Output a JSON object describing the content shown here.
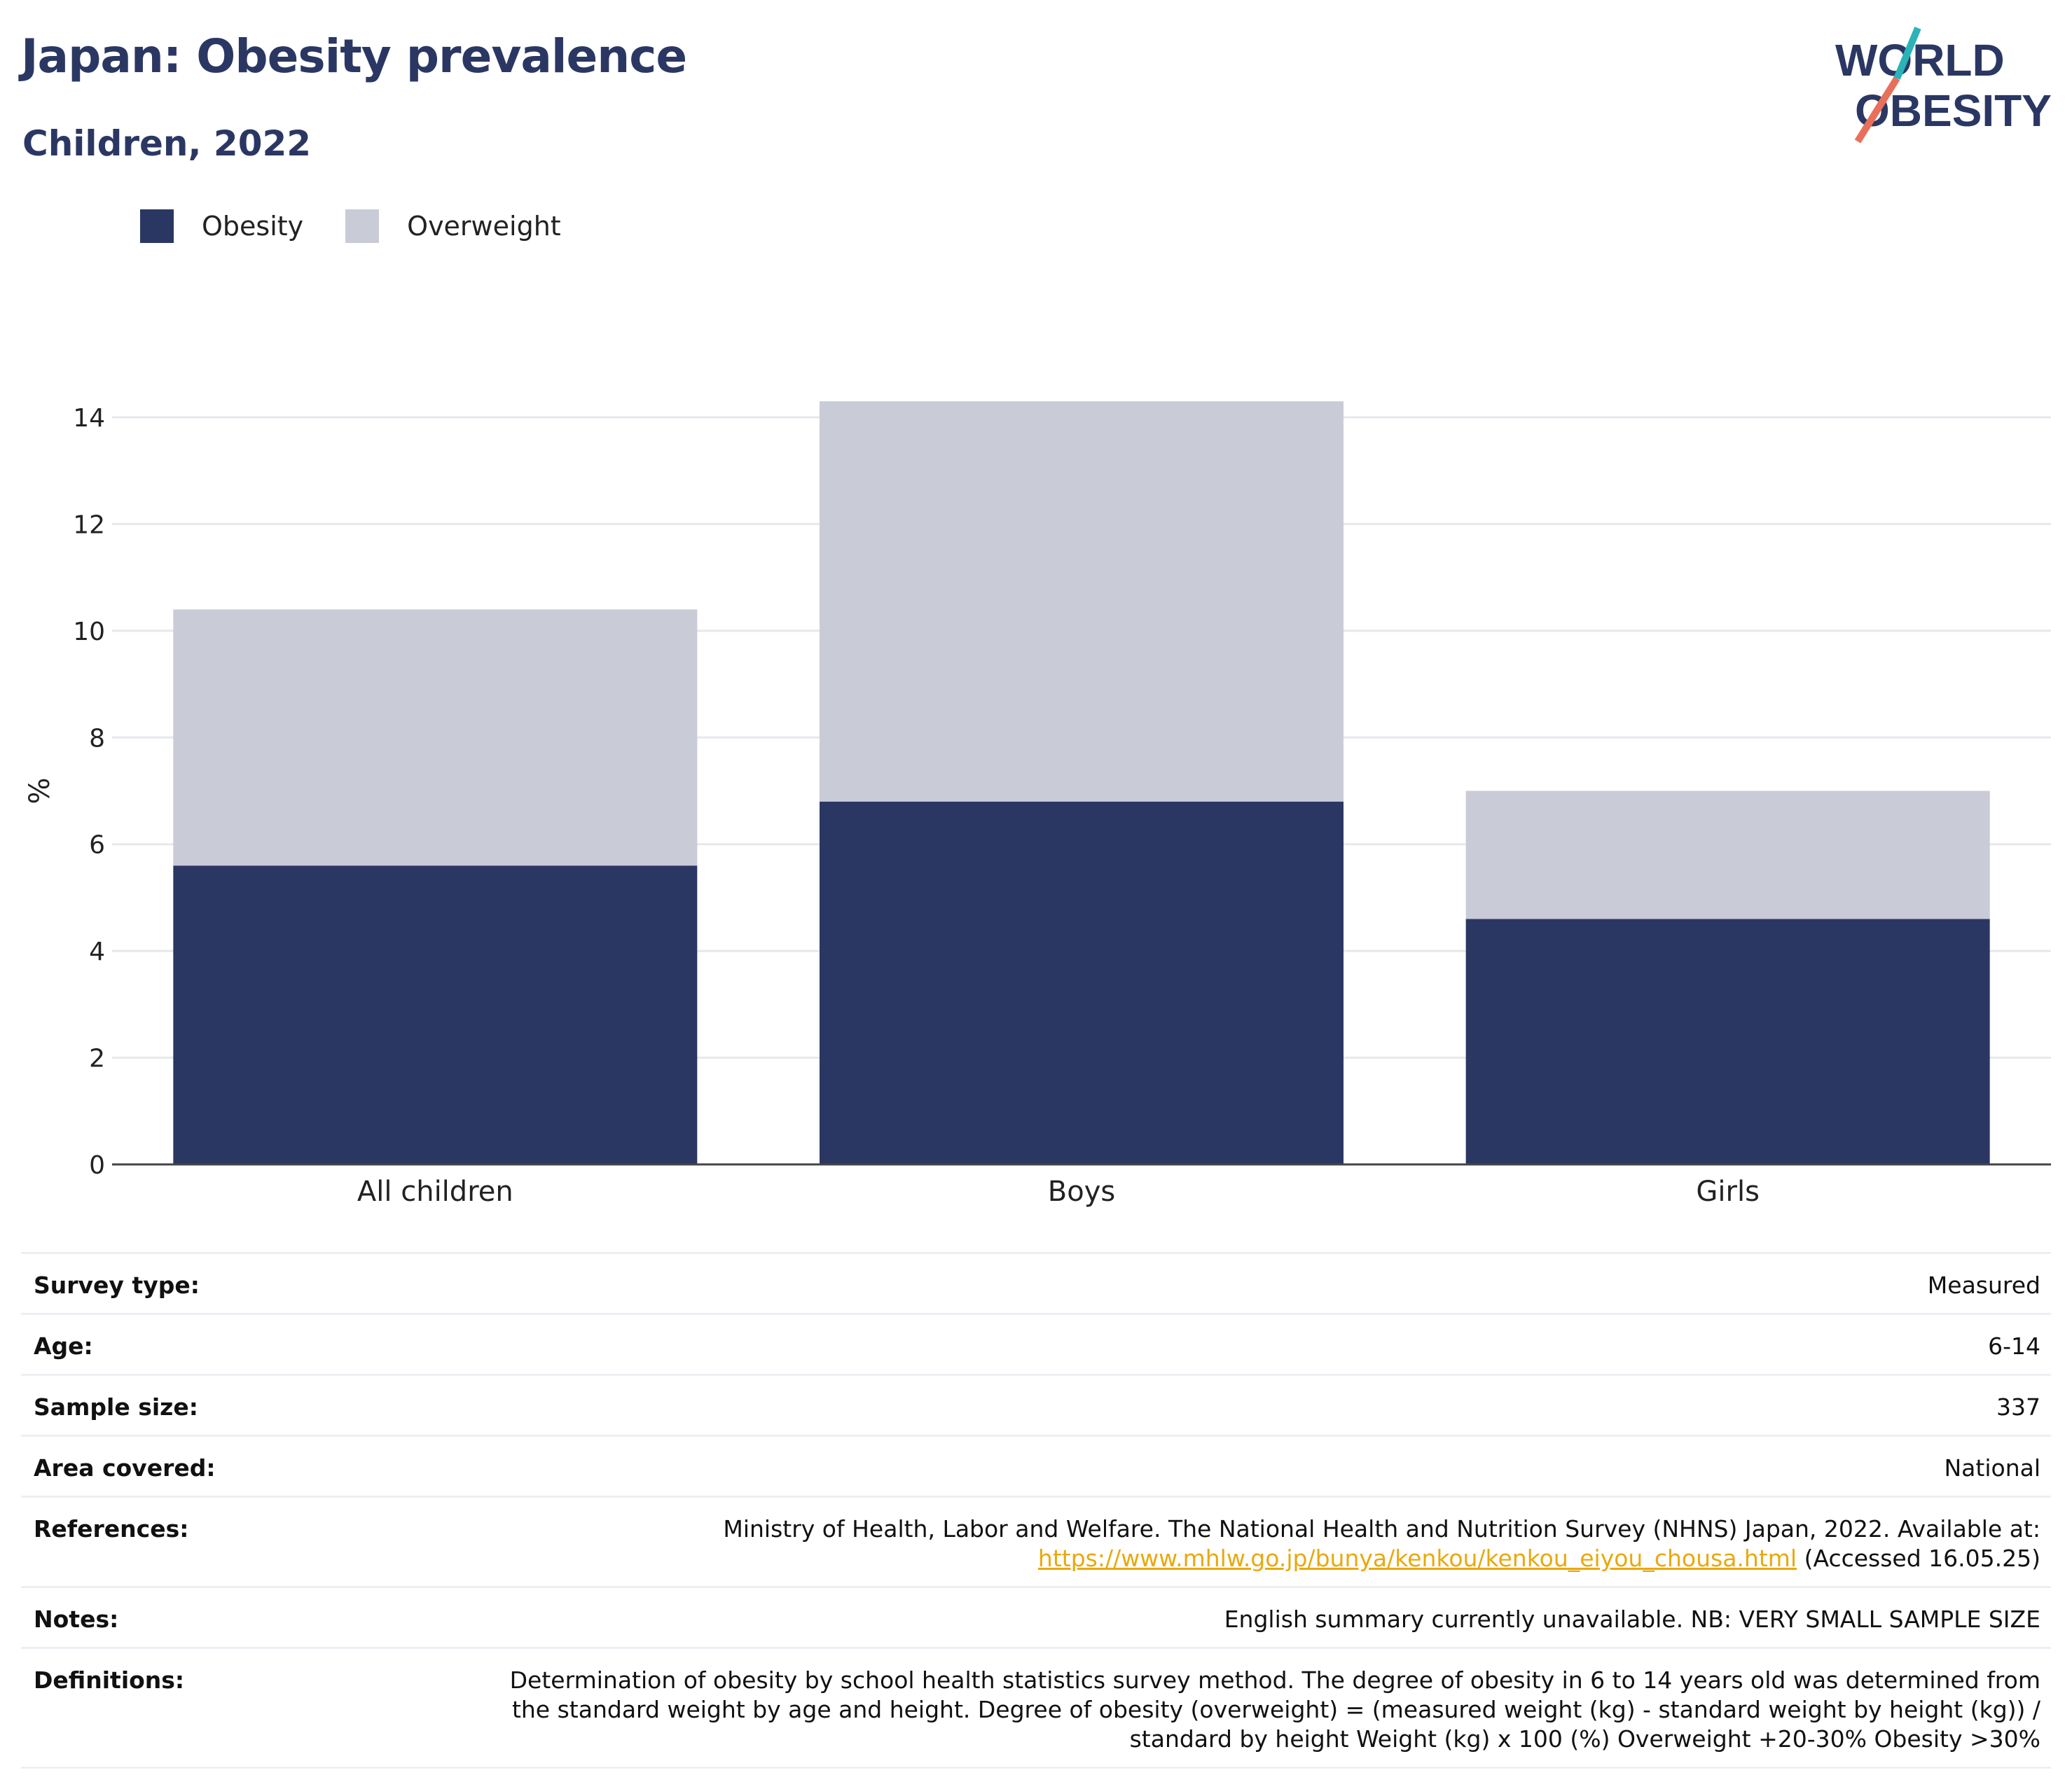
{
  "header": {
    "title": "Japan: Obesity prevalence",
    "subtitle": "Children, 2022",
    "logo_line1": "WORLD",
    "logo_line2": "OBESITY"
  },
  "legend": [
    {
      "label": "Obesity",
      "color": "#2b3763"
    },
    {
      "label": "Overweight",
      "color": "#c9cbd7"
    }
  ],
  "chart_data": {
    "type": "bar",
    "stacked": true,
    "categories": [
      "All children",
      "Boys",
      "Girls"
    ],
    "series": [
      {
        "name": "Obesity",
        "values": [
          5.6,
          6.8,
          4.6
        ],
        "color": "#2b3763"
      },
      {
        "name": "Overweight",
        "values": [
          4.8,
          7.5,
          2.4
        ],
        "color": "#c9cbd7"
      }
    ],
    "ylabel": "%",
    "ylim": [
      0,
      14
    ],
    "yticks": [
      0,
      2,
      4,
      6,
      8,
      10,
      12,
      14
    ],
    "grid": true
  },
  "info": {
    "survey_type": {
      "label": "Survey type:",
      "value": "Measured"
    },
    "age": {
      "label": "Age:",
      "value": "6-14"
    },
    "sample_size": {
      "label": "Sample size:",
      "value": "337"
    },
    "area": {
      "label": "Area covered:",
      "value": "National"
    },
    "references": {
      "label": "References:",
      "text": "Ministry of Health, Labor and Welfare. The National Health and Nutrition Survey (NHNS) Japan, 2022. Available at:",
      "link": "https://www.mhlw.go.jp/bunya/kenkou/kenkou_eiyou_chousa.html",
      "accessed": "(Accessed 16.05.25)"
    },
    "notes": {
      "label": "Notes:",
      "value": "English summary currently unavailable. NB: VERY SMALL SAMPLE SIZE"
    },
    "definitions": {
      "label": "Definitions:",
      "value": "Determination of obesity by school health statistics survey method. The degree of obesity in 6 to 14 years old was determined from the standard weight by age and height. Degree of obesity (overweight) = (measured weight (kg) - standard weight by height (kg)) / standard by height Weight (kg) x 100 (%) Overweight +20-30% Obesity >30%"
    }
  }
}
